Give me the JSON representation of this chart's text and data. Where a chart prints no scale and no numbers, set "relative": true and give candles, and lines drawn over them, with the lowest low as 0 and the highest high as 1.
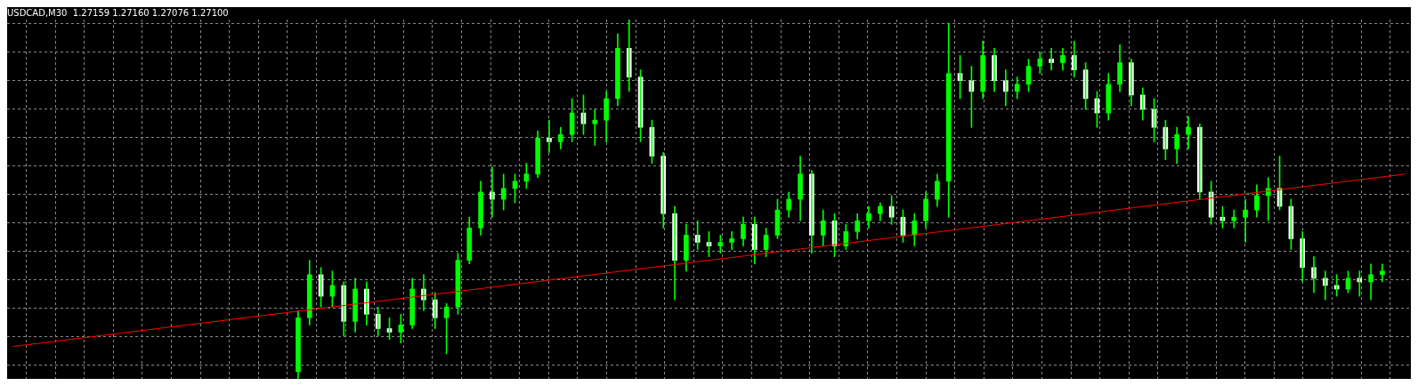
{
  "chart_data": {
    "type": "candlestick",
    "title": "USDCAD,M30  1.27159 1.27160 1.27076 1.27100",
    "relative": true,
    "grid": true,
    "tick_labels": false,
    "color": "#00ff00",
    "colors": [
      null,
      null,
      null,
      null,
      null,
      null,
      null,
      null,
      null,
      null,
      null,
      null,
      null,
      null,
      null,
      null,
      null,
      null,
      null,
      null,
      null,
      null,
      null,
      null,
      null,
      "#00ff00",
      "#00ff00",
      "#ffffff",
      "#00ff00",
      "#ffffff",
      "#00ff00",
      "#ffffff",
      "#ffffff",
      "#ffffff",
      "#00ff00",
      "#00ff00",
      "#ffffff",
      "#ffffff",
      "#00ff00",
      "#00ff00",
      "#00ff00",
      "#00ff00",
      "#ffffff",
      "#00ff00",
      "#00ff00",
      "#00ff00",
      "#00ff00",
      "#ffffff",
      "#00ff00",
      "#00ff00",
      "#ffffff",
      "#00ff00",
      "#00ff00",
      "#00ff00",
      "#ffffff",
      "#ffffff",
      "#ffffff",
      "#ffffff",
      "#ffffff",
      "#00ff00",
      "#ffffff",
      "#ffffff",
      "#00ff00",
      "#00ff00",
      "#00ff00",
      "#ffffff",
      "#00ff00",
      "#00ff00",
      "#00ff00",
      "#00ff00",
      "#ffffff",
      "#00ff00",
      "#ffffff",
      "#00ff00",
      "#00ff00",
      "#00ff00",
      "#00ff00",
      "#ffffff",
      "#ffffff",
      "#00ff00",
      "#00ff00",
      "#00ff00",
      "#00ff00",
      "#ffffff",
      "#ffffff",
      "#00ff00",
      "#ffffff",
      "#ffffff",
      "#00ff00",
      "#00ff00",
      "#00ff00",
      "#ffffff",
      "#00ff00",
      "#ffffff",
      "#ffffff",
      "#ffffff",
      "#00ff00",
      "#00ff00",
      "#ffffff",
      "#ffffff",
      "#ffffff",
      "#ffffff",
      "#00ff00",
      "#00ff00",
      "#ffffff",
      "#ffffff",
      "#ffffff",
      "#00ff00",
      "#00ff00",
      "#00ff00",
      "#00ff00",
      "#ffffff",
      "#ffffff",
      "#ffffff",
      "#ffffff",
      "#ffffff",
      "#ffffff",
      "#00ff00",
      "#ffffff",
      "#00ff00",
      "#00ff00",
      null,
      null
    ],
    "categories": [
      null,
      null,
      null,
      null,
      null,
      null,
      null,
      null,
      null,
      null,
      null,
      null,
      null,
      null,
      null,
      null,
      null,
      null,
      null,
      null,
      null,
      null,
      null,
      null,
      null,
      null,
      null,
      null,
      null,
      null,
      null,
      null,
      null,
      null,
      null,
      null,
      null,
      null,
      null,
      null,
      null,
      null,
      null,
      null,
      null,
      null,
      null,
      null,
      null,
      null,
      null,
      null,
      null,
      null,
      null,
      null,
      null,
      null,
      null,
      null,
      null,
      null,
      null,
      null,
      null,
      null,
      null,
      null,
      null,
      null,
      null,
      null,
      null,
      null,
      null,
      null,
      null,
      null,
      null,
      null,
      null,
      null,
      null,
      null,
      null,
      null,
      null,
      null,
      null,
      null,
      null,
      null,
      null,
      null,
      null,
      null,
      null,
      null,
      null,
      null,
      null,
      null,
      null,
      null,
      null,
      null,
      null,
      null,
      null,
      null,
      null,
      null,
      null,
      null,
      null,
      null,
      null,
      null,
      null,
      null,
      null,
      null,
      null
    ],
    "ohlc": [
      null,
      null,
      null,
      null,
      null,
      null,
      null,
      null,
      null,
      null,
      null,
      null,
      null,
      null,
      null,
      null,
      null,
      null,
      null,
      null,
      null,
      null,
      null,
      null,
      null,
      [
        0.02,
        0.19,
        0,
        0.17
      ],
      [
        0.17,
        0.33,
        0.15,
        0.29
      ],
      [
        0.29,
        0.31,
        0.2,
        0.23
      ],
      [
        0.23,
        0.3,
        0.2,
        0.26
      ],
      [
        0.26,
        0.27,
        0.12,
        0.16
      ],
      [
        0.16,
        0.28,
        0.13,
        0.25
      ],
      [
        0.25,
        0.27,
        0.15,
        0.18
      ],
      [
        0.18,
        0.2,
        0.12,
        0.14
      ],
      [
        0.14,
        0.17,
        0.11,
        0.13
      ],
      [
        0.13,
        0.18,
        0.1,
        0.15
      ],
      [
        0.15,
        0.28,
        0.14,
        0.25
      ],
      [
        0.25,
        0.29,
        0.19,
        0.22
      ],
      [
        0.22,
        0.24,
        0.14,
        0.17
      ],
      [
        0.17,
        0.21,
        0.07,
        0.2
      ],
      [
        0.2,
        0.35,
        0.18,
        0.33
      ],
      [
        0.33,
        0.45,
        0.32,
        0.42
      ],
      [
        0.42,
        0.55,
        0.4,
        0.52
      ],
      [
        0.52,
        0.59,
        0.45,
        0.5
      ],
      [
        0.5,
        0.57,
        0.47,
        0.53
      ],
      [
        0.53,
        0.57,
        0.49,
        0.55
      ],
      [
        0.55,
        0.6,
        0.53,
        0.57
      ],
      [
        0.57,
        0.69,
        0.56,
        0.67
      ],
      [
        0.67,
        0.72,
        0.63,
        0.66
      ],
      [
        0.66,
        0.7,
        0.64,
        0.68
      ],
      [
        0.68,
        0.78,
        0.66,
        0.74
      ],
      [
        0.74,
        0.79,
        0.68,
        0.71
      ],
      [
        0.71,
        0.75,
        0.65,
        0.72
      ],
      [
        0.72,
        0.8,
        0.66,
        0.78
      ],
      [
        0.78,
        0.96,
        0.76,
        0.92
      ],
      [
        0.92,
        1,
        0.8,
        0.84
      ],
      [
        0.84,
        0.86,
        0.66,
        0.7
      ],
      [
        0.7,
        0.72,
        0.6,
        0.62
      ],
      [
        0.62,
        0.63,
        0.42,
        0.46
      ],
      [
        0.46,
        0.48,
        0.22,
        0.33
      ],
      [
        0.33,
        0.43,
        0.3,
        0.4
      ],
      [
        0.4,
        0.44,
        0.36,
        0.38
      ],
      [
        0.38,
        0.41,
        0.34,
        0.37
      ],
      [
        0.37,
        0.4,
        0.35,
        0.38
      ],
      [
        0.38,
        0.41,
        0.36,
        0.39
      ],
      [
        0.39,
        0.45,
        0.37,
        0.43
      ],
      [
        0.43,
        0.45,
        0.32,
        0.36
      ],
      [
        0.36,
        0.42,
        0.34,
        0.4
      ],
      [
        0.4,
        0.5,
        0.39,
        0.47
      ],
      [
        0.47,
        0.52,
        0.45,
        0.5
      ],
      [
        0.5,
        0.62,
        0.44,
        0.57
      ],
      [
        0.57,
        0.58,
        0.35,
        0.4
      ],
      [
        0.4,
        0.47,
        0.37,
        0.44
      ],
      [
        0.44,
        0.46,
        0.34,
        0.37
      ],
      [
        0.37,
        0.43,
        0.36,
        0.41
      ],
      [
        0.41,
        0.46,
        0.39,
        0.44
      ],
      [
        0.44,
        0.48,
        0.42,
        0.46
      ],
      [
        0.46,
        0.49,
        0.44,
        0.48
      ],
      [
        0.48,
        0.51,
        0.43,
        0.45
      ],
      [
        0.45,
        0.47,
        0.38,
        0.4
      ],
      [
        0.4,
        0.46,
        0.37,
        0.44
      ],
      [
        0.44,
        0.52,
        0.42,
        0.5
      ],
      [
        0.5,
        0.57,
        0.48,
        0.55
      ],
      [
        0.55,
        0.99,
        0.45,
        0.85
      ],
      [
        0.85,
        0.9,
        0.78,
        0.83
      ],
      [
        0.83,
        0.87,
        0.7,
        0.8
      ],
      [
        0.8,
        0.94,
        0.78,
        0.9
      ],
      [
        0.9,
        0.92,
        0.8,
        0.83
      ],
      [
        0.83,
        0.86,
        0.76,
        0.8
      ],
      [
        0.8,
        0.84,
        0.78,
        0.82
      ],
      [
        0.82,
        0.89,
        0.8,
        0.87
      ],
      [
        0.87,
        0.91,
        0.85,
        0.89
      ],
      [
        0.89,
        0.92,
        0.86,
        0.88
      ],
      [
        0.88,
        0.92,
        0.86,
        0.9
      ],
      [
        0.9,
        0.94,
        0.84,
        0.86
      ],
      [
        0.86,
        0.88,
        0.75,
        0.78
      ],
      [
        0.78,
        0.8,
        0.7,
        0.74
      ],
      [
        0.74,
        0.85,
        0.72,
        0.82
      ],
      [
        0.82,
        0.93,
        0.8,
        0.88
      ],
      [
        0.88,
        0.89,
        0.76,
        0.79
      ],
      [
        0.79,
        0.81,
        0.72,
        0.75
      ],
      [
        0.75,
        0.78,
        0.66,
        0.7
      ],
      [
        0.7,
        0.72,
        0.61,
        0.64
      ],
      [
        0.64,
        0.7,
        0.6,
        0.68
      ],
      [
        0.68,
        0.73,
        0.64,
        0.7
      ],
      [
        0.7,
        0.71,
        0.5,
        0.52
      ],
      [
        0.52,
        0.55,
        0.43,
        0.45
      ],
      [
        0.45,
        0.48,
        0.42,
        0.44
      ],
      [
        0.44,
        0.47,
        0.42,
        0.45
      ],
      [
        0.45,
        0.5,
        0.38,
        0.47
      ],
      [
        0.47,
        0.54,
        0.45,
        0.51
      ],
      [
        0.51,
        0.56,
        0.44,
        0.53
      ],
      [
        0.53,
        0.62,
        0.47,
        0.48
      ],
      [
        0.48,
        0.5,
        0.36,
        0.39
      ],
      [
        0.39,
        0.41,
        0.27,
        0.31
      ],
      [
        0.31,
        0.34,
        0.24,
        0.28
      ],
      [
        0.28,
        0.3,
        0.22,
        0.26
      ],
      [
        0.26,
        0.29,
        0.23,
        0.25
      ],
      [
        0.25,
        0.3,
        0.24,
        0.28
      ],
      [
        0.28,
        0.3,
        0.23,
        0.27
      ],
      [
        0.27,
        0.32,
        0.22,
        0.29
      ],
      [
        0.29,
        0.32,
        0.27,
        0.3
      ],
      null,
      null
    ],
    "series": [
      {
        "type": "line",
        "color": "#ff0000",
        "values": [
          0.09,
          null,
          null,
          null,
          null,
          null,
          null,
          null,
          null,
          null,
          null,
          null,
          null,
          null,
          null,
          null,
          null,
          null,
          null,
          null,
          null,
          null,
          null,
          null,
          null,
          null,
          null,
          null,
          null,
          null,
          null,
          null,
          null,
          null,
          null,
          null,
          null,
          null,
          null,
          null,
          null,
          null,
          null,
          null,
          null,
          null,
          null,
          null,
          null,
          null,
          null,
          null,
          null,
          null,
          null,
          null,
          null,
          null,
          null,
          null,
          null,
          null,
          null,
          null,
          null,
          null,
          null,
          null,
          null,
          null,
          null,
          null,
          null,
          null,
          null,
          null,
          null,
          null,
          null,
          null,
          null,
          null,
          null,
          null,
          null,
          null,
          null,
          null,
          null,
          null,
          null,
          null,
          null,
          null,
          null,
          null,
          null,
          null,
          null,
          null,
          null,
          null,
          null,
          null,
          null,
          null,
          null,
          null,
          null,
          null,
          null,
          null,
          null,
          null,
          null,
          null,
          null,
          null,
          null,
          null,
          null,
          null,
          0.57
        ]
      }
    ]
  }
}
